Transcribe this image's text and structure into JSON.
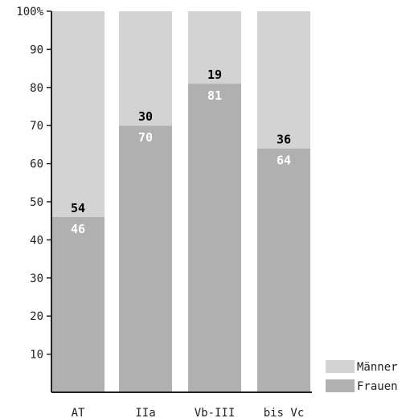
{
  "chart_data": {
    "type": "bar",
    "stacked": true,
    "percent_scale": true,
    "categories": [
      "AT",
      "IIa",
      "Vb-III",
      "bis Vc"
    ],
    "series": [
      {
        "name": "Frauen",
        "values": [
          46,
          70,
          81,
          64
        ],
        "color": "#b0b0b0",
        "label_color": "#ffffff"
      },
      {
        "name": "Männer",
        "values": [
          54,
          30,
          19,
          36
        ],
        "color": "#d3d3d3",
        "label_color": "#000000"
      }
    ],
    "ylim": [
      0,
      100
    ],
    "yticks": [
      "10",
      "20",
      "30",
      "40",
      "50",
      "60",
      "70",
      "80",
      "90",
      "100%"
    ],
    "ytick_values": [
      10,
      20,
      30,
      40,
      50,
      60,
      70,
      80,
      90,
      100
    ],
    "legend_order": [
      "Männer",
      "Frauen"
    ],
    "legend_position": "bottom-right",
    "grid": false
  }
}
